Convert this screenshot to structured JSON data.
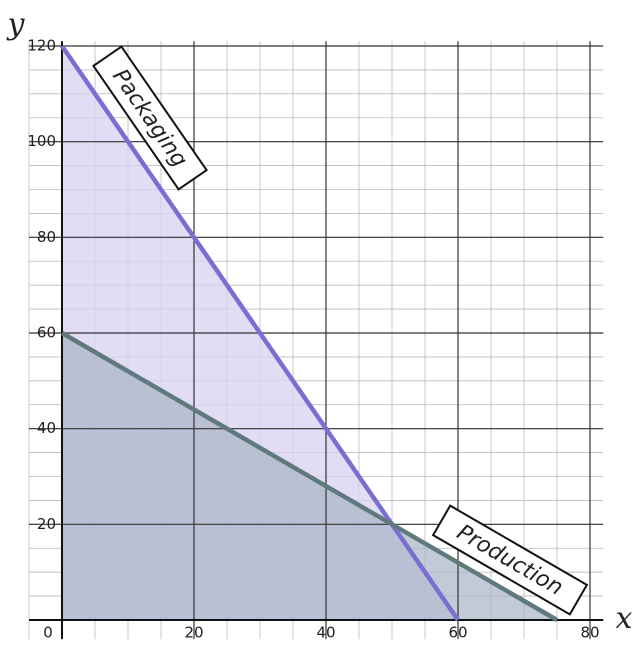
{
  "chart_data": {
    "type": "line",
    "x_label": "x",
    "y_label": "y",
    "x_origin_label": "0",
    "series": [
      {
        "name": "Packaging",
        "color": "#7a6ed0",
        "fill": "#d8d2f2",
        "x": [
          0,
          60
        ],
        "values": [
          120,
          0
        ]
      },
      {
        "name": "Production",
        "color": "#5f7a7c",
        "fill": "#a9b3c6",
        "x": [
          0,
          75
        ],
        "values": [
          60,
          0
        ]
      }
    ],
    "xlim": [
      -5,
      82
    ],
    "ylim": [
      -4,
      121
    ],
    "xticks": [
      20,
      40,
      60,
      80
    ],
    "yticks": [
      20,
      40,
      60,
      80,
      100,
      120
    ],
    "grid": true,
    "minor_grid_step": 5
  }
}
